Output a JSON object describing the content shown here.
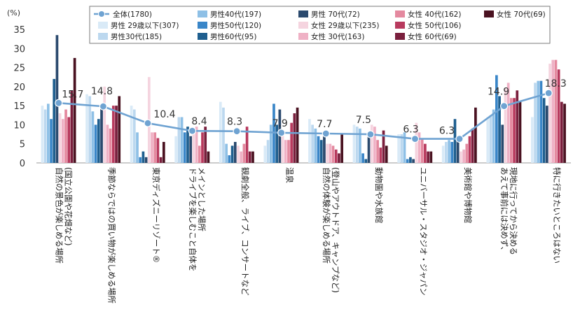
{
  "chart_data": {
    "type": "bar",
    "unit": "(%)",
    "ylim": [
      0,
      35
    ],
    "yticks": [
      0,
      5,
      10,
      15,
      20,
      25,
      30,
      35
    ],
    "grid": false,
    "legend_position": "top",
    "categories": [
      "自然の景色が楽しめる場所\n(国立公園や花畑など)",
      "季節ならではの買い物が楽しめる場所",
      "東京ディズニーリゾート®",
      "ドライブを楽しむこと自体を\nメインとした場所",
      "観劇全般、ライブ、コンサートなど",
      "温泉",
      "自然の体験が楽しめる場所\n(登山やアウトドア、キャンプなど)",
      "動物園や水族館",
      "ユニバーサル・スタジオ・ジャパン",
      "美術館や博物館",
      "あえて事前には決めず、\n現地に行ってから決める",
      "特に行きたいところはない"
    ],
    "line_series": {
      "name": "全体(1780)",
      "color": "#6fa3d2",
      "values": [
        15.7,
        14.8,
        10.4,
        8.4,
        8.3,
        7.9,
        7.7,
        7.5,
        6.3,
        6.3,
        14.9,
        18.3
      ],
      "labels": [
        "15.7",
        "14.8",
        "10.4",
        "8.4",
        "8.3",
        "7.9",
        "7.7",
        "7.5",
        "6.3",
        "6.3",
        "14.9",
        "18.3"
      ]
    },
    "series": [
      {
        "name": "男性 29歳以下(307)",
        "color": "#d9eaf7",
        "values": [
          15.0,
          18.0,
          15.0,
          7.0,
          16.0,
          4.5,
          11.5,
          10.0,
          7.5,
          4.5,
          12.0,
          12.0
        ]
      },
      {
        "name": "男性30代(185)",
        "color": "#bcd8ef",
        "values": [
          14.0,
          17.5,
          14.0,
          12.0,
          14.5,
          6.0,
          10.0,
          9.5,
          7.5,
          5.5,
          12.5,
          21.0
        ]
      },
      {
        "name": "男性40代(197)",
        "color": "#8ec0e6",
        "values": [
          15.5,
          13.5,
          8.0,
          12.0,
          5.0,
          10.0,
          9.0,
          9.0,
          8.0,
          6.0,
          14.0,
          21.5
        ]
      },
      {
        "name": "男性50代(120)",
        "color": "#3a86c8",
        "values": [
          11.5,
          10.0,
          1.5,
          8.0,
          2.0,
          15.5,
          7.0,
          2.5,
          1.0,
          5.5,
          23.0,
          21.5
        ]
      },
      {
        "name": "男性60代(95)",
        "color": "#1f5f8f",
        "values": [
          22.0,
          11.5,
          3.0,
          9.5,
          4.5,
          10.0,
          6.0,
          1.0,
          1.5,
          11.5,
          17.5,
          17.0
        ]
      },
      {
        "name": "男性 70代(72)",
        "color": "#2b4a6e",
        "values": [
          33.5,
          15.0,
          1.5,
          7.0,
          5.5,
          14.0,
          7.0,
          7.0,
          1.0,
          6.5,
          10.0,
          15.0
        ]
      },
      {
        "name": "女性 29歳以下(235)",
        "color": "#f5d4df",
        "values": [
          13.0,
          20.0,
          22.5,
          8.0,
          4.5,
          7.5,
          5.0,
          10.0,
          10.5,
          3.0,
          19.5,
          26.0
        ]
      },
      {
        "name": "女性 30代(163)",
        "color": "#efb1c5",
        "values": [
          11.5,
          10.0,
          8.0,
          9.5,
          3.0,
          6.0,
          5.0,
          9.5,
          8.0,
          3.5,
          21.0,
          27.0
        ]
      },
      {
        "name": "女性 40代(162)",
        "color": "#e4899f",
        "values": [
          14.0,
          9.0,
          8.0,
          4.5,
          5.0,
          6.0,
          4.5,
          6.0,
          6.5,
          5.0,
          17.0,
          27.0
        ]
      },
      {
        "name": "女性 50代(106)",
        "color": "#b83a5e",
        "values": [
          12.0,
          15.0,
          6.5,
          8.0,
          9.5,
          10.5,
          3.5,
          4.0,
          5.0,
          7.0,
          17.0,
          24.5
        ]
      },
      {
        "name": "女性 60代(69)",
        "color": "#7a1f3d",
        "values": [
          19.0,
          15.0,
          1.5,
          9.5,
          3.0,
          13.0,
          2.5,
          8.5,
          3.0,
          9.0,
          19.0,
          16.0
        ]
      },
      {
        "name": "女性 70代(69)",
        "color": "#4a1221",
        "values": [
          27.5,
          17.5,
          5.5,
          3.0,
          3.0,
          14.5,
          7.5,
          4.5,
          3.0,
          14.5,
          16.0,
          15.5
        ]
      }
    ],
    "legend_rows": [
      [
        "全体(1780)",
        "男性40代(197)",
        "男性 70代(72)",
        "女性 40代(162)",
        "女性 70代(69)"
      ],
      [
        "男性 29歳以下(307)",
        "男性50代(120)",
        "女性 29歳以下(235)",
        "女性 50代(106)"
      ],
      [
        "男性30代(185)",
        "男性60代(95)",
        "女性 30代(163)",
        "女性 60代(69)"
      ]
    ]
  }
}
